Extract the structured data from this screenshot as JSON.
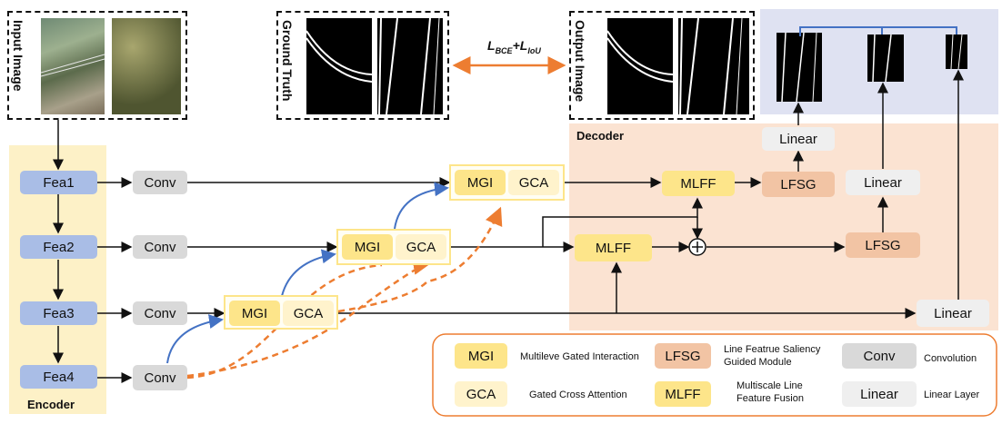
{
  "encoder": {
    "label": "Encoder",
    "features": [
      "Fea1",
      "Fea2",
      "Fea3",
      "Fea4"
    ]
  },
  "decoder": {
    "label": "Decoder"
  },
  "conv_label": "Conv",
  "mgi_label": "MGI",
  "gca_label": "GCA",
  "mlff_label": "MLFF",
  "lfsg_label": "LFSG",
  "linear_label": "Linear",
  "panels": {
    "input": "Input Image",
    "ground_truth": "Ground Truth",
    "output": "Output Image"
  },
  "loss": {
    "l1": "L",
    "s1": "BCE",
    "plus": "+",
    "l2": "L",
    "s2": "IoU"
  },
  "legend": [
    {
      "abbr": "MGI",
      "desc": "Multileve Gated Interaction"
    },
    {
      "abbr": "LFSG",
      "desc": "Line Featrue Saliency Guided Module"
    },
    {
      "abbr": "Conv",
      "desc": "Convolution"
    },
    {
      "abbr": "GCA",
      "desc": "Gated Cross Attention"
    },
    {
      "abbr": "MLFF",
      "desc": "Multiscale Line Feature Fusion"
    },
    {
      "abbr": "Linear",
      "desc": "Linear Layer"
    }
  ],
  "colors": {
    "encoder_bg": "#fdf1c7",
    "decoder_bg": "#fbe3d2",
    "output_bg": "#dfe2f2",
    "skip_arrow": "#4472c4",
    "loss_arrow": "#ed7d31"
  }
}
